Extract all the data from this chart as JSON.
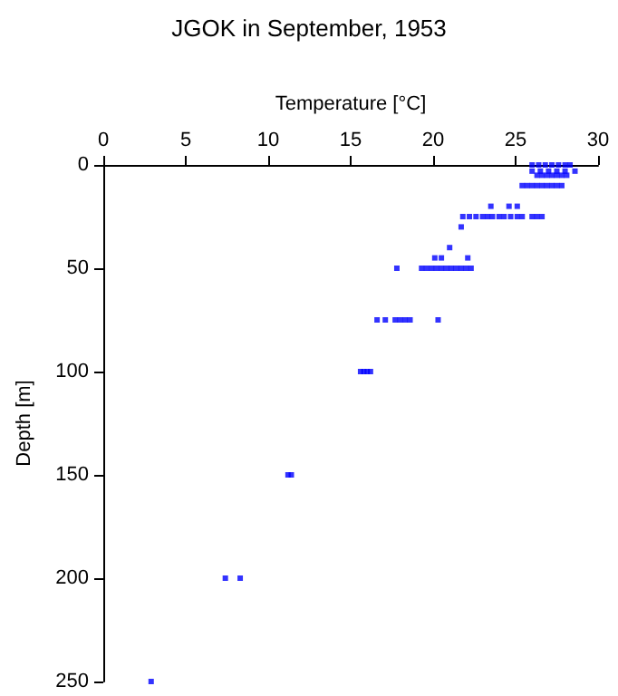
{
  "chart_data": {
    "type": "scatter",
    "title": "JGOK in September, 1953",
    "xlabel": "Temperature [°C]",
    "ylabel": "Depth [m]",
    "x": [
      2.9,
      7.4,
      8.3,
      11.2,
      11.4,
      15.6,
      15.8,
      16.0,
      16.2,
      16.6,
      17.1,
      17.7,
      18.0,
      18.3,
      18.6,
      20.3,
      17.8,
      19.3,
      19.6,
      19.9,
      20.2,
      20.5,
      20.8,
      21.1,
      21.4,
      21.7,
      22.0,
      22.3,
      20.1,
      20.5,
      22.1,
      21.0,
      21.7,
      21.8,
      22.2,
      22.6,
      23.0,
      23.3,
      23.6,
      24.0,
      24.3,
      24.7,
      25.1,
      25.4,
      26.0,
      26.3,
      26.6,
      23.5,
      24.6,
      25.1,
      25.4,
      25.7,
      26.0,
      26.3,
      26.6,
      26.9,
      27.2,
      27.5,
      27.8,
      26.3,
      26.6,
      26.9,
      27.2,
      27.5,
      27.8,
      28.1,
      26.0,
      26.5,
      27.0,
      27.5,
      28.0,
      28.6,
      26.0,
      26.4,
      26.8,
      27.2,
      27.6,
      28.0,
      28.3
    ],
    "values": [
      250,
      200,
      200,
      150,
      150,
      100,
      100,
      100,
      100,
      75,
      75,
      75,
      75,
      75,
      75,
      75,
      50,
      50,
      50,
      50,
      50,
      50,
      50,
      50,
      50,
      50,
      50,
      50,
      45,
      45,
      45,
      40,
      30,
      25,
      25,
      25,
      25,
      25,
      25,
      25,
      25,
      25,
      25,
      25,
      25,
      25,
      25,
      20,
      20,
      20,
      10,
      10,
      10,
      10,
      10,
      10,
      10,
      10,
      10,
      5,
      5,
      5,
      5,
      5,
      5,
      5,
      3,
      3,
      3,
      3,
      3,
      3,
      0,
      0,
      0,
      0,
      0,
      0,
      0
    ],
    "color": "#0000ff",
    "marker": "square",
    "xlim": [
      0,
      30
    ],
    "xticks": [
      0,
      5,
      10,
      15,
      20,
      25,
      30
    ],
    "ylim": [
      250,
      0
    ],
    "yticks": [
      0,
      50,
      100,
      150,
      200,
      250
    ],
    "grid": false
  }
}
